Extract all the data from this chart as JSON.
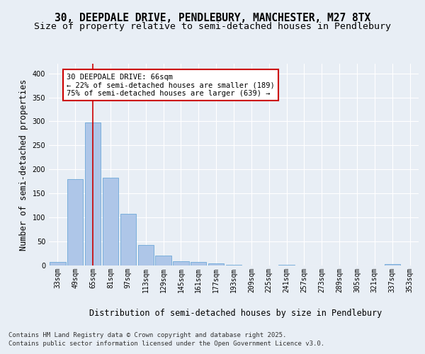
{
  "title_line1": "30, DEEPDALE DRIVE, PENDLEBURY, MANCHESTER, M27 8TX",
  "title_line2": "Size of property relative to semi-detached houses in Pendlebury",
  "xlabel": "Distribution of semi-detached houses by size in Pendlebury",
  "ylabel": "Number of semi-detached properties",
  "categories": [
    "33sqm",
    "49sqm",
    "65sqm",
    "81sqm",
    "97sqm",
    "113sqm",
    "129sqm",
    "145sqm",
    "161sqm",
    "177sqm",
    "193sqm",
    "209sqm",
    "225sqm",
    "241sqm",
    "257sqm",
    "273sqm",
    "289sqm",
    "305sqm",
    "321sqm",
    "337sqm",
    "353sqm"
  ],
  "values": [
    7,
    180,
    298,
    183,
    108,
    43,
    21,
    9,
    7,
    4,
    2,
    0,
    0,
    2,
    0,
    0,
    0,
    0,
    0,
    3,
    0
  ],
  "bar_color": "#aec6e8",
  "bar_edge_color": "#5a9fd4",
  "vline_x_index": 2,
  "vline_color": "#cc0000",
  "annotation_text": "30 DEEPDALE DRIVE: 66sqm\n← 22% of semi-detached houses are smaller (189)\n75% of semi-detached houses are larger (639) →",
  "annotation_box_color": "#ffffff",
  "annotation_box_edge": "#cc0000",
  "ylim": [
    0,
    420
  ],
  "yticks": [
    0,
    50,
    100,
    150,
    200,
    250,
    300,
    350,
    400
  ],
  "background_color": "#e8eef5",
  "plot_bg_color": "#e8eef5",
  "grid_color": "#ffffff",
  "footer_line1": "Contains HM Land Registry data © Crown copyright and database right 2025.",
  "footer_line2": "Contains public sector information licensed under the Open Government Licence v3.0.",
  "title_fontsize": 10.5,
  "subtitle_fontsize": 9.5,
  "axis_label_fontsize": 8.5,
  "tick_fontsize": 7,
  "annotation_fontsize": 7.5,
  "footer_fontsize": 6.5
}
